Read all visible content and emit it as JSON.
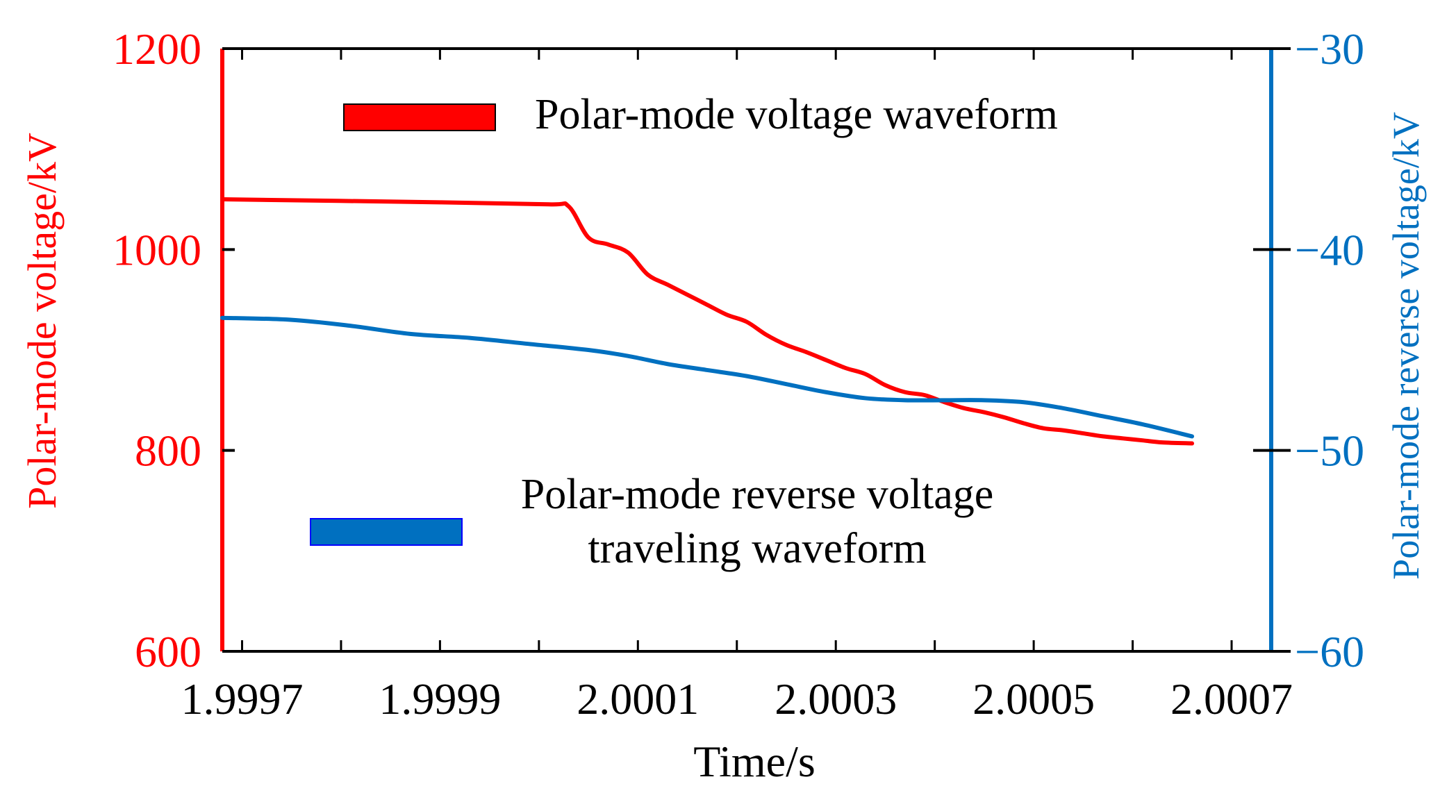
{
  "chart_data": {
    "type": "line",
    "xlabel": "Time/s",
    "ylabel_left": "Polar-mode voltage/kV",
    "ylabel_right": "Polar-mode reverse voltage/kV",
    "xlim": [
      1.99968,
      2.00074
    ],
    "ylim_left": [
      600,
      1200
    ],
    "ylim_right": [
      -60,
      -30
    ],
    "x_ticks": [
      1.9997,
      1.9999,
      2.0001,
      2.0003,
      2.0005,
      2.0007
    ],
    "x_tick_labels": [
      "1.9997",
      "1.9999",
      "2.0001",
      "2.0003",
      "2.0005",
      "2.0007"
    ],
    "x_minor_ticks": [
      1.9998,
      2.0,
      2.0002,
      2.0004,
      2.0006
    ],
    "y_left_ticks": [
      600,
      800,
      1000,
      1200
    ],
    "y_left_tick_labels": [
      "600",
      "800",
      "1000",
      "1200"
    ],
    "y_right_ticks": [
      -60,
      -50,
      -40,
      -30
    ],
    "y_right_tick_labels": [
      "−60",
      "−50",
      "−40",
      "−30"
    ],
    "colors": {
      "left": "#ff0000",
      "right": "#0070c0",
      "axis": "#000000"
    },
    "series": [
      {
        "name": "Polar-mode voltage waveform",
        "axis": "left",
        "color": "#ff0000",
        "x": [
          1.99968,
          1.9999,
          2.00001,
          2.00003,
          2.00005,
          2.00007,
          2.00009,
          2.00011,
          2.00013,
          2.00015,
          2.00017,
          2.00019,
          2.00021,
          2.00023,
          2.00025,
          2.00027,
          2.00029,
          2.00031,
          2.00033,
          2.00035,
          2.00037,
          2.00039,
          2.00041,
          2.00043,
          2.00045,
          2.00047,
          2.00049,
          2.00051,
          2.00053,
          2.00055,
          2.00057,
          2.00059,
          2.00061,
          2.00063,
          2.00066
        ],
        "y": [
          1050,
          1047,
          1045,
          1043,
          1012,
          1005,
          997,
          975,
          965,
          955,
          945,
          935,
          928,
          915,
          905,
          898,
          890,
          882,
          876,
          865,
          858,
          855,
          848,
          842,
          838,
          833,
          827,
          822,
          820,
          817,
          814,
          812,
          810,
          808,
          807
        ]
      },
      {
        "name": "Polar-mode reverse voltage traveling waveform",
        "axis": "right",
        "color": "#0070c0",
        "x": [
          1.99968,
          1.99975,
          1.99981,
          1.99987,
          1.99993,
          1.99999,
          2.00005,
          2.00009,
          2.00013,
          2.00017,
          2.00021,
          2.00025,
          2.00029,
          2.00033,
          2.00037,
          2.00041,
          2.00045,
          2.00049,
          2.00053,
          2.00057,
          2.00061,
          2.00066
        ],
        "y": [
          -43.4,
          -43.5,
          -43.8,
          -44.2,
          -44.4,
          -44.7,
          -45.0,
          -45.3,
          -45.7,
          -46.0,
          -46.3,
          -46.7,
          -47.1,
          -47.4,
          -47.5,
          -47.5,
          -47.5,
          -47.6,
          -47.9,
          -48.3,
          -48.7,
          -49.3
        ]
      }
    ],
    "legend": [
      {
        "label_lines": [
          "Polar-mode voltage waveform"
        ],
        "color": "#ff0000",
        "border": "#000000"
      },
      {
        "label_lines": [
          "Polar-mode reverse voltage",
          "traveling waveform"
        ],
        "color": "#0070c0",
        "border": "#0000ff"
      }
    ]
  }
}
